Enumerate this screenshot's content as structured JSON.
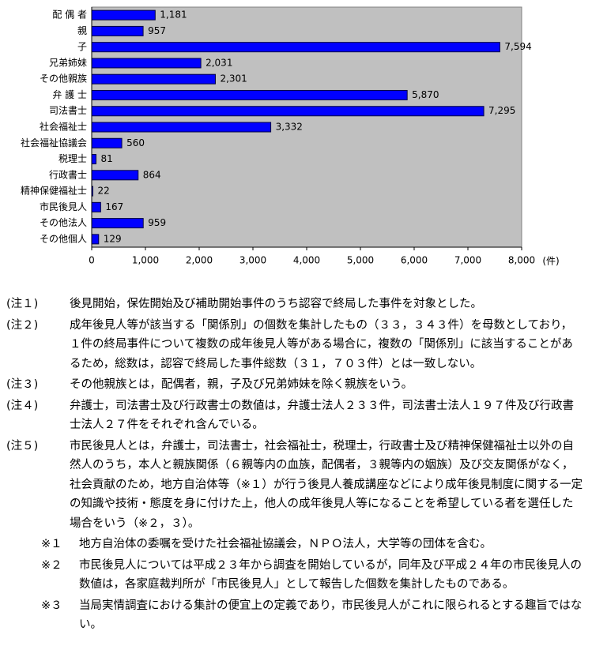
{
  "chart_data": {
    "type": "bar",
    "orientation": "horizontal",
    "categories": [
      "配 偶 者",
      "親",
      "子",
      "兄弟姉妹",
      "その他親族",
      "弁 護 士",
      "司法書士",
      "社会福祉士",
      "社会福祉協議会",
      "税理士",
      "行政書士",
      "精神保健福祉士",
      "市民後見人",
      "その他法人",
      "その他個人"
    ],
    "values": [
      1181,
      957,
      7594,
      2031,
      2301,
      5870,
      7295,
      3332,
      560,
      81,
      864,
      22,
      167,
      959,
      129
    ],
    "value_labels": [
      "1,181",
      "957",
      "7,594",
      "2,031",
      "2,301",
      "5,870",
      "7,295",
      "3,332",
      "560",
      "81",
      "864",
      "22",
      "167",
      "959",
      "129"
    ],
    "color": "#0000ff",
    "plot_background": "#c0c0c0",
    "xlim": [
      0,
      8000
    ],
    "xticks": [
      0,
      {
        "value": 1000,
        "label": "1,000"
      },
      {
        "value": 2000,
        "label": "2,000"
      },
      {
        "value": 3000,
        "label": "3,000"
      },
      {
        "value": 4000,
        "label": "4,000"
      },
      {
        "value": 5000,
        "label": "5,000"
      },
      {
        "value": 6000,
        "label": "6,000"
      },
      {
        "value": 7000,
        "label": "7,000"
      },
      {
        "value": 8000,
        "label": "8,000"
      }
    ],
    "unit_label": "(件)"
  },
  "notes": [
    {
      "label": "(注１)",
      "text": "後見開始，保佐開始及び補助開始事件のうち認容で終局した事件を対象とした。"
    },
    {
      "label": "(注２)",
      "text": "成年後見人等が該当する「関係別」の個数を集計したもの（３３，３４３件）を母数としており，１件の終局事件について複数の成年後見人等がある場合に，複数の「関係別」に該当することがあるため，総数は，認容で終局した事件総数（３１，７０３件）とは一致しない。"
    },
    {
      "label": "(注３)",
      "text": "その他親族とは，配偶者，親，子及び兄弟姉妹を除く親族をいう。"
    },
    {
      "label": "(注４)",
      "text": "弁護士，司法書士及び行政書士の数値は，弁護士法人２３３件，司法書士法人１９７件及び行政書士法人２７件をそれぞれ含んでいる。"
    },
    {
      "label": "(注５)",
      "text": "市民後見人とは，弁護士，司法書士，社会福祉士，税理士，行政書士及び精神保健福祉士以外の自然人のうち，本人と親族関係（６親等内の血族，配偶者，３親等内の姻族）及び交友関係がなく，社会貢献のため，地方自治体等（※１）が行う後見人養成講座などにより成年後見制度に関する一定の知識や技術・態度を身に付けた上，他人の成年後見人等になることを希望している者を選任した場合をいう（※２，３）。"
    }
  ],
  "sub_notes": [
    {
      "label": "※１",
      "text": "地方自治体の委嘱を受けた社会福祉協議会，ＮＰＯ法人，大学等の団体を含む。"
    },
    {
      "label": "※２",
      "text": "市民後見人については平成２３年から調査を開始しているが，同年及び平成２４年の市民後見人の数値は，各家庭裁判所が「市民後見人」として報告した個数を集計したものである。"
    },
    {
      "label": "※３",
      "text": "当局実情調査における集計の便宜上の定義であり，市民後見人がこれに限られるとする趣旨ではない。"
    }
  ]
}
